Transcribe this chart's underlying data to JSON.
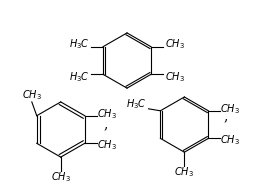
{
  "bg_color": "#ffffff",
  "text_color": "#000000",
  "line_color": "#000000",
  "font_size": 7,
  "italic_font": "italic",
  "font_family": "serif"
}
